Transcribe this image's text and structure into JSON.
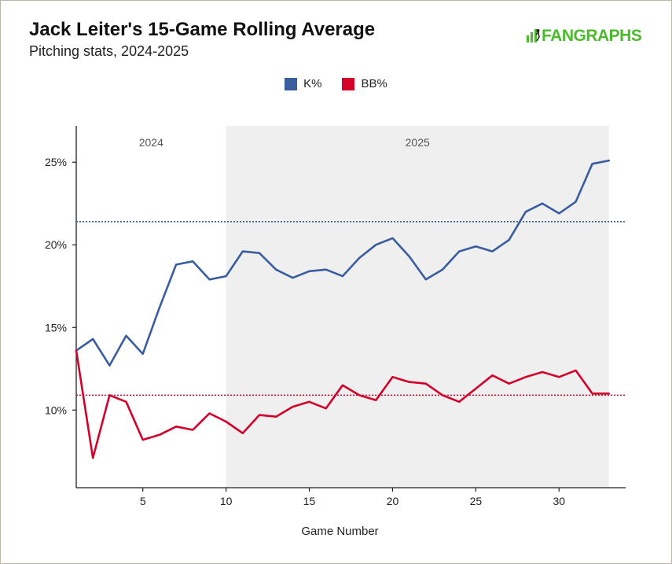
{
  "header": {
    "title": "Jack Leiter's 15-Game Rolling Average",
    "subtitle": "Pitching stats, 2024-2025",
    "logo_text": "FANGRAPHS"
  },
  "legend": [
    {
      "label": "K%",
      "color": "#3a5da0"
    },
    {
      "label": "BB%",
      "color": "#d4002a"
    }
  ],
  "chart_data": {
    "type": "line",
    "title": "Jack Leiter's 15-Game Rolling Average",
    "subtitle": "Pitching stats, 2024-2025",
    "xlabel": "Game Number",
    "ylabel": "",
    "xlim": [
      1,
      34
    ],
    "ylim": [
      5.3,
      27.2
    ],
    "x_ticks": [
      5,
      10,
      15,
      20,
      25,
      30
    ],
    "x_tick_labels": [
      "5",
      "10",
      "15",
      "20",
      "25",
      "30"
    ],
    "y_ticks": [
      10,
      15,
      20,
      25
    ],
    "y_tick_labels": [
      "10%",
      "15%",
      "20%",
      "25%"
    ],
    "grid": false,
    "legend_position": "top-center",
    "regions": [
      {
        "label": "2024",
        "x_start": 1,
        "x_end": 10,
        "shaded": false
      },
      {
        "label": "2025",
        "x_start": 10,
        "x_end": 33,
        "shaded": true,
        "color": "#efefef"
      }
    ],
    "x": [
      1,
      2,
      3,
      4,
      5,
      6,
      7,
      8,
      9,
      10,
      11,
      12,
      13,
      14,
      15,
      16,
      17,
      18,
      19,
      20,
      21,
      22,
      23,
      24,
      25,
      26,
      27,
      28,
      29,
      30,
      31,
      32,
      33
    ],
    "series": [
      {
        "name": "K%",
        "color": "#3a5da0",
        "values": [
          13.6,
          14.3,
          12.7,
          14.5,
          13.4,
          16.2,
          18.8,
          19.0,
          17.9,
          18.1,
          19.6,
          19.5,
          18.5,
          18.0,
          18.4,
          18.5,
          18.1,
          19.2,
          20.0,
          20.4,
          19.3,
          17.9,
          18.5,
          19.6,
          19.9,
          19.6,
          20.3,
          22.0,
          22.5,
          21.9,
          22.6,
          24.9,
          25.1
        ],
        "reference_line": 21.4
      },
      {
        "name": "BB%",
        "color": "#d4002a",
        "values": [
          13.6,
          7.1,
          10.9,
          10.5,
          8.2,
          8.5,
          9.0,
          8.8,
          9.8,
          9.3,
          8.6,
          9.7,
          9.6,
          10.2,
          10.5,
          10.1,
          11.5,
          10.9,
          10.6,
          12.0,
          11.7,
          11.6,
          10.9,
          10.5,
          11.3,
          12.1,
          11.6,
          12.0,
          12.3,
          12.0,
          12.4,
          11.0,
          11.0
        ],
        "reference_line": 10.9
      }
    ]
  }
}
